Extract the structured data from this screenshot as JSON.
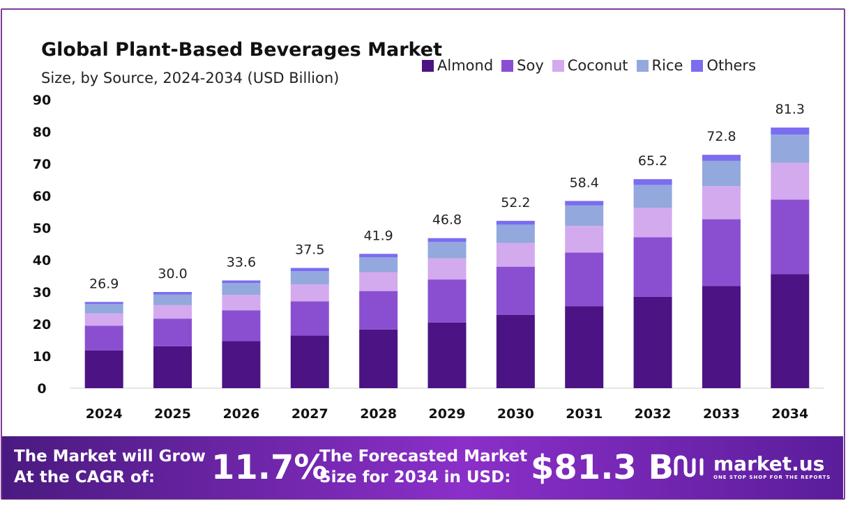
{
  "chart_data": {
    "type": "bar",
    "stacked": true,
    "title": "Global Plant-Based Beverages Market",
    "subtitle": "Size, by Source, 2024-2034 (USD Billion)",
    "categories": [
      "2024",
      "2025",
      "2026",
      "2027",
      "2028",
      "2029",
      "2030",
      "2031",
      "2032",
      "2033",
      "2034"
    ],
    "series": [
      {
        "name": "Almond",
        "color": "#4b1383",
        "values": [
          11.8,
          13.1,
          14.7,
          16.4,
          18.3,
          20.5,
          22.9,
          25.6,
          28.5,
          31.9,
          35.6
        ]
      },
      {
        "name": "Soy",
        "color": "#8a4fd1",
        "values": [
          7.7,
          8.6,
          9.6,
          10.7,
          12.0,
          13.4,
          15.0,
          16.7,
          18.6,
          20.8,
          23.2
        ]
      },
      {
        "name": "Coconut",
        "color": "#d3aaee",
        "values": [
          3.8,
          4.2,
          4.8,
          5.3,
          5.9,
          6.6,
          7.4,
          8.3,
          9.2,
          10.3,
          11.5
        ]
      },
      {
        "name": "Rice",
        "color": "#93a8dd",
        "values": [
          3.0,
          3.3,
          3.7,
          4.1,
          4.6,
          5.1,
          5.7,
          6.4,
          7.1,
          7.9,
          8.8
        ]
      },
      {
        "name": "Others",
        "color": "#7a6df0",
        "values": [
          0.6,
          0.8,
          0.8,
          1.0,
          1.1,
          1.2,
          1.2,
          1.4,
          1.8,
          1.9,
          2.2
        ]
      }
    ],
    "totals": [
      "26.9",
      "30.0",
      "33.6",
      "37.5",
      "41.9",
      "46.8",
      "52.2",
      "58.4",
      "65.2",
      "72.8",
      "81.3"
    ],
    "ylim": [
      0,
      90
    ],
    "yticks": [
      0,
      10,
      20,
      30,
      40,
      50,
      60,
      70,
      80,
      90
    ],
    "grid": false,
    "legend_position": "top-right"
  },
  "banner": {
    "cagr_label_line1": "The Market will Grow",
    "cagr_label_line2": "At the CAGR of:",
    "cagr_value": "11.7%",
    "forecast_label_line1": "The Forecasted Market",
    "forecast_label_line2": "Size for 2034 in USD:",
    "forecast_value": "$81.3 B",
    "brand_name": "market.us",
    "brand_tagline": "ONE STOP SHOP FOR THE REPORTS"
  }
}
